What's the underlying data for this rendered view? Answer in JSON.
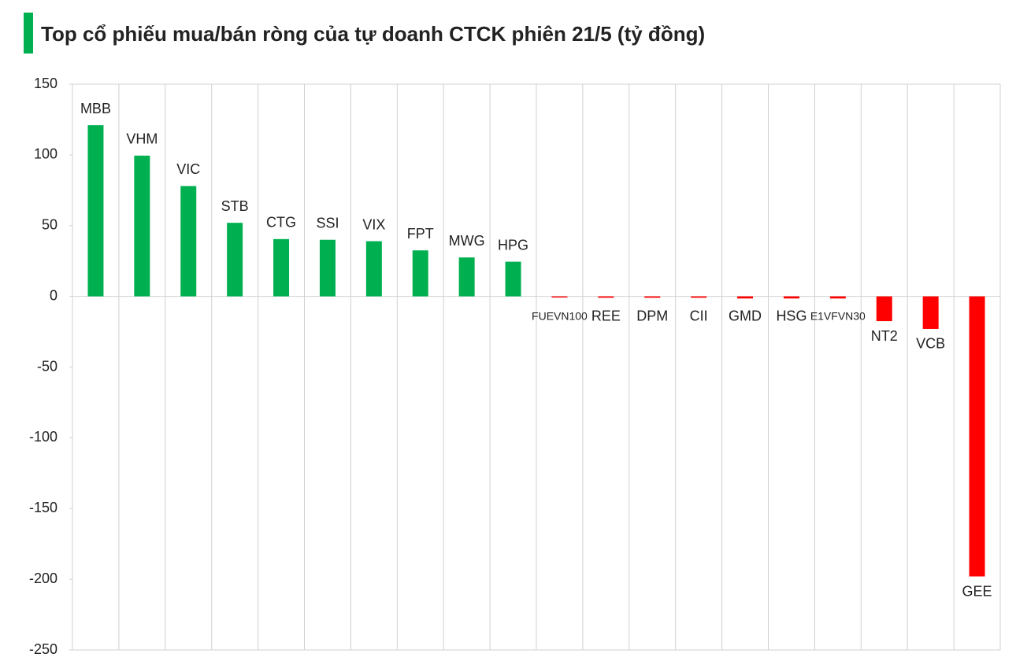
{
  "chart_data": {
    "type": "bar",
    "title": "Top cổ phiếu mua/bán ròng của tự doanh CTCK phiên 21/5 (tỷ đồng)",
    "categories": [
      "MBB",
      "VHM",
      "VIC",
      "STB",
      "CTG",
      "SSI",
      "VIX",
      "FPT",
      "MWG",
      "HPG",
      "FUEVN100",
      "REE",
      "DPM",
      "CII",
      "GMD",
      "HSG",
      "E1VFVN30",
      "NT2",
      "VCB",
      "GEE"
    ],
    "values": [
      121,
      99.5,
      78,
      52,
      40.5,
      40,
      39,
      32.5,
      27.5,
      24.5,
      -0.5,
      -1,
      -1,
      -1,
      -1.5,
      -1.5,
      -1.5,
      -17.5,
      -23,
      -198
    ],
    "positive_color": "#00b050",
    "negative_color": "#ff0000",
    "ylim": [
      -250,
      150
    ],
    "yticks": [
      -250,
      -200,
      -150,
      -100,
      -50,
      0,
      50,
      100,
      150
    ],
    "grid": true
  }
}
